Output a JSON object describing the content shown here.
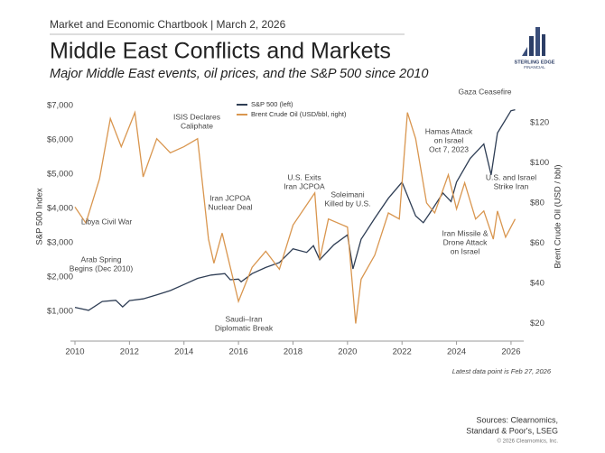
{
  "header": {
    "kicker": "Market and Economic Chartbook | March 2, 2026",
    "title": "Middle East Conflicts and Markets",
    "subtitle": "Major Middle East events, oil prices, and the S&P 500 since 2010",
    "logo": [
      "STERLING EDGE",
      "FINANCIAL"
    ]
  },
  "chart_data": {
    "type": "line",
    "xlim": [
      2010,
      2026.3
    ],
    "xticks": [
      2010,
      2012,
      2014,
      2016,
      2018,
      2020,
      2022,
      2024,
      2026
    ],
    "ylim": [
      0,
      7500
    ],
    "yticks": [
      {
        "value": 1000,
        "label": "$1,000"
      },
      {
        "value": 2000,
        "label": "$2,000"
      },
      {
        "value": 3000,
        "label": "$3,000"
      },
      {
        "value": 4000,
        "label": "$4,000"
      },
      {
        "value": 5000,
        "label": "$5,000"
      },
      {
        "value": 6000,
        "label": "$6,000"
      },
      {
        "value": 7000,
        "label": "$7,000"
      }
    ],
    "y2lim": [
      9,
      137
    ],
    "y2ticks": [
      {
        "value": 20,
        "label": "$20"
      },
      {
        "value": 40,
        "label": "$40"
      },
      {
        "value": 60,
        "label": "$60"
      },
      {
        "value": 80,
        "label": "$80"
      },
      {
        "value": 100,
        "label": "$100"
      },
      {
        "value": 120,
        "label": "$120"
      }
    ],
    "ylabel": "S&P 500 Index",
    "y2label": "Brent Crude Oil (USD / bbl)",
    "legend": "top-left",
    "series": [
      {
        "name": "S&P 500 (left)",
        "color": "#2f3e55",
        "x": [
          2010.0,
          2010.5,
          2011.0,
          2011.5,
          2011.75,
          2012.0,
          2012.5,
          2013.0,
          2013.5,
          2014.0,
          2014.5,
          2015.0,
          2015.5,
          2015.7,
          2016.0,
          2016.1,
          2016.5,
          2017.0,
          2017.5,
          2018.0,
          2018.5,
          2018.75,
          2018.98,
          2019.5,
          2020.0,
          2020.2,
          2020.5,
          2021.0,
          2021.5,
          2022.0,
          2022.5,
          2022.78,
          2023.0,
          2023.5,
          2023.8,
          2024.0,
          2024.5,
          2025.0,
          2025.27,
          2025.5,
          2026.0,
          2026.15
        ],
        "values": [
          1115,
          1030,
          1286,
          1320,
          1130,
          1312,
          1362,
          1480,
          1606,
          1782,
          1960,
          2058,
          2100,
          1920,
          1940,
          1860,
          2100,
          2278,
          2420,
          2823,
          2718,
          2913,
          2506,
          2940,
          3230,
          2237,
          3100,
          3714,
          4297,
          4766,
          3785,
          3585,
          3840,
          4450,
          4200,
          4770,
          5460,
          5880,
          4980,
          6200,
          6850,
          6880
        ]
      },
      {
        "name": "Brent Crude Oil (USD/bbl, right)",
        "color": "#d9964f",
        "axis": "y2",
        "x": [
          2010.0,
          2010.4,
          2010.9,
          2011.3,
          2011.7,
          2012.2,
          2012.5,
          2013.0,
          2013.5,
          2014.0,
          2014.5,
          2014.9,
          2015.1,
          2015.4,
          2016.0,
          2016.5,
          2017.0,
          2017.5,
          2018.0,
          2018.8,
          2018.98,
          2019.3,
          2020.0,
          2020.3,
          2020.5,
          2021.0,
          2021.5,
          2021.9,
          2022.2,
          2022.5,
          2022.9,
          2023.2,
          2023.7,
          2024.0,
          2024.3,
          2024.7,
          2025.0,
          2025.35,
          2025.5,
          2025.8,
          2026.15
        ],
        "values": [
          78,
          70,
          92,
          122,
          108,
          125,
          93,
          112,
          105,
          108,
          112,
          62,
          50,
          65,
          31,
          48,
          56,
          47,
          69,
          85,
          52,
          72,
          68,
          20,
          42,
          54,
          75,
          72,
          125,
          112,
          80,
          75,
          94,
          77,
          90,
          72,
          76,
          62,
          76,
          63,
          72
        ]
      }
    ],
    "annotations": [
      [
        "Libya Civil War"
      ],
      [
        "Arab Spring",
        "Begins (Dec 2010)"
      ],
      [
        "ISIS Declares",
        "Caliphate"
      ],
      [
        "Iran JCPOA",
        "Nuclear Deal"
      ],
      [
        "Saudi–Iran",
        "Diplomatic Break"
      ],
      [
        "U.S. Exits",
        "Iran JCPOA"
      ],
      [
        "Soleimani",
        "Killed by U.S."
      ],
      [
        "Hamas Attack",
        "on Israel",
        "Oct 7, 2023"
      ],
      [
        "Gaza Ceasefire"
      ],
      [
        "U.S. and Israel",
        "Strike Iran"
      ],
      [
        "Iran Missile &",
        "Drone Attack",
        "on Israel"
      ]
    ],
    "footnote": "Latest data point is Feb 27, 2026"
  },
  "footer": {
    "sources": [
      "Sources: Clearnomics,",
      "Standard & Poor's, LSEG"
    ],
    "copyright": "© 2026 Clearnomics, Inc."
  }
}
